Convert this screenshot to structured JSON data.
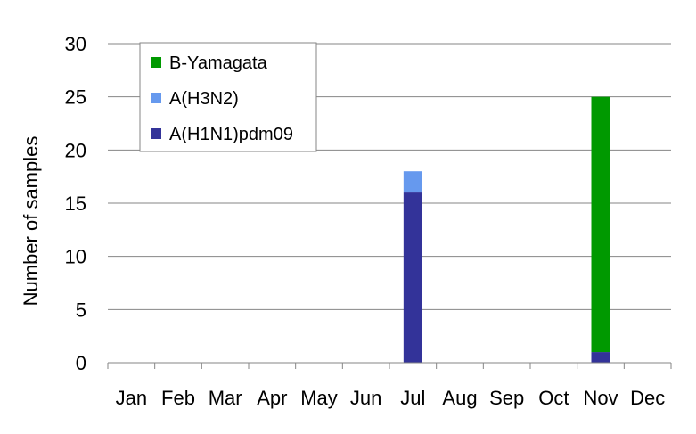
{
  "chart_data": {
    "type": "bar",
    "stacked": true,
    "categories": [
      "Jan",
      "Feb",
      "Mar",
      "Apr",
      "May",
      "Jun",
      "Jul",
      "Aug",
      "Sep",
      "Oct",
      "Nov",
      "Dec"
    ],
    "series": [
      {
        "name": "A(H1N1)pdm09",
        "color": "#333399",
        "values": [
          0,
          0,
          0,
          0,
          0,
          0,
          16,
          0,
          0,
          0,
          1,
          0
        ]
      },
      {
        "name": "A(H3N2)",
        "color": "#6699ee",
        "values": [
          0,
          0,
          0,
          0,
          0,
          0,
          2,
          0,
          0,
          0,
          0,
          0
        ]
      },
      {
        "name": "B-Yamagata",
        "color": "#009900",
        "values": [
          0,
          0,
          0,
          0,
          0,
          0,
          0,
          0,
          0,
          0,
          24,
          0
        ]
      }
    ],
    "legend_order": [
      "B-Yamagata",
      "A(H3N2)",
      "A(H1N1)pdm09"
    ],
    "legend_position": "top-left",
    "ylabel": "Number of samples",
    "xlabel": "",
    "ylim": [
      0,
      30
    ],
    "yticks": [
      0,
      5,
      10,
      15,
      20,
      25,
      30
    ],
    "grid": true
  }
}
